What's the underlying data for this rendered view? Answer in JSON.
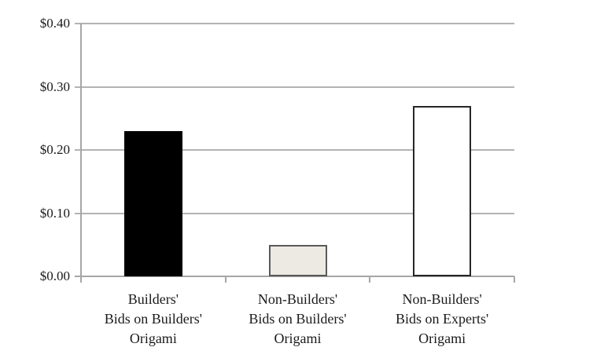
{
  "chart_data": {
    "type": "bar",
    "title": "",
    "xlabel": "",
    "ylabel": "",
    "categories": [
      "Builders' Bids on Builders' Origami",
      "Non-Builders' Bids on Builders' Origami",
      "Non-Builders' Bids on Experts' Origami"
    ],
    "category_label_lines": [
      [
        "Builders'",
        "Bids on Builders'",
        "Origami"
      ],
      [
        "Non-Builders'",
        "Bids on Builders'",
        "Origami"
      ],
      [
        "Non-Builders'",
        "Bids on Experts'",
        "Origami"
      ]
    ],
    "values": [
      0.23,
      0.05,
      0.27
    ],
    "value_unit": "dollars",
    "ylim": [
      0,
      0.4
    ],
    "ytick_values": [
      0.0,
      0.1,
      0.2,
      0.3,
      0.4
    ],
    "ytick_labels": [
      "$0.00",
      "$0.10",
      "$0.20",
      "$0.30",
      "$0.40"
    ],
    "grid": "horizontal",
    "legend": "none",
    "bar_fill_colors": [
      "#000000",
      "#edeae3",
      "#ffffff"
    ],
    "bar_border_colors": [
      "#000000",
      "#595959",
      "#262626"
    ],
    "gridline_color": "#b3b3b3",
    "axis_color": "#a6a6a6",
    "text_color": "#1a1a1a",
    "background_color": "#ffffff"
  }
}
